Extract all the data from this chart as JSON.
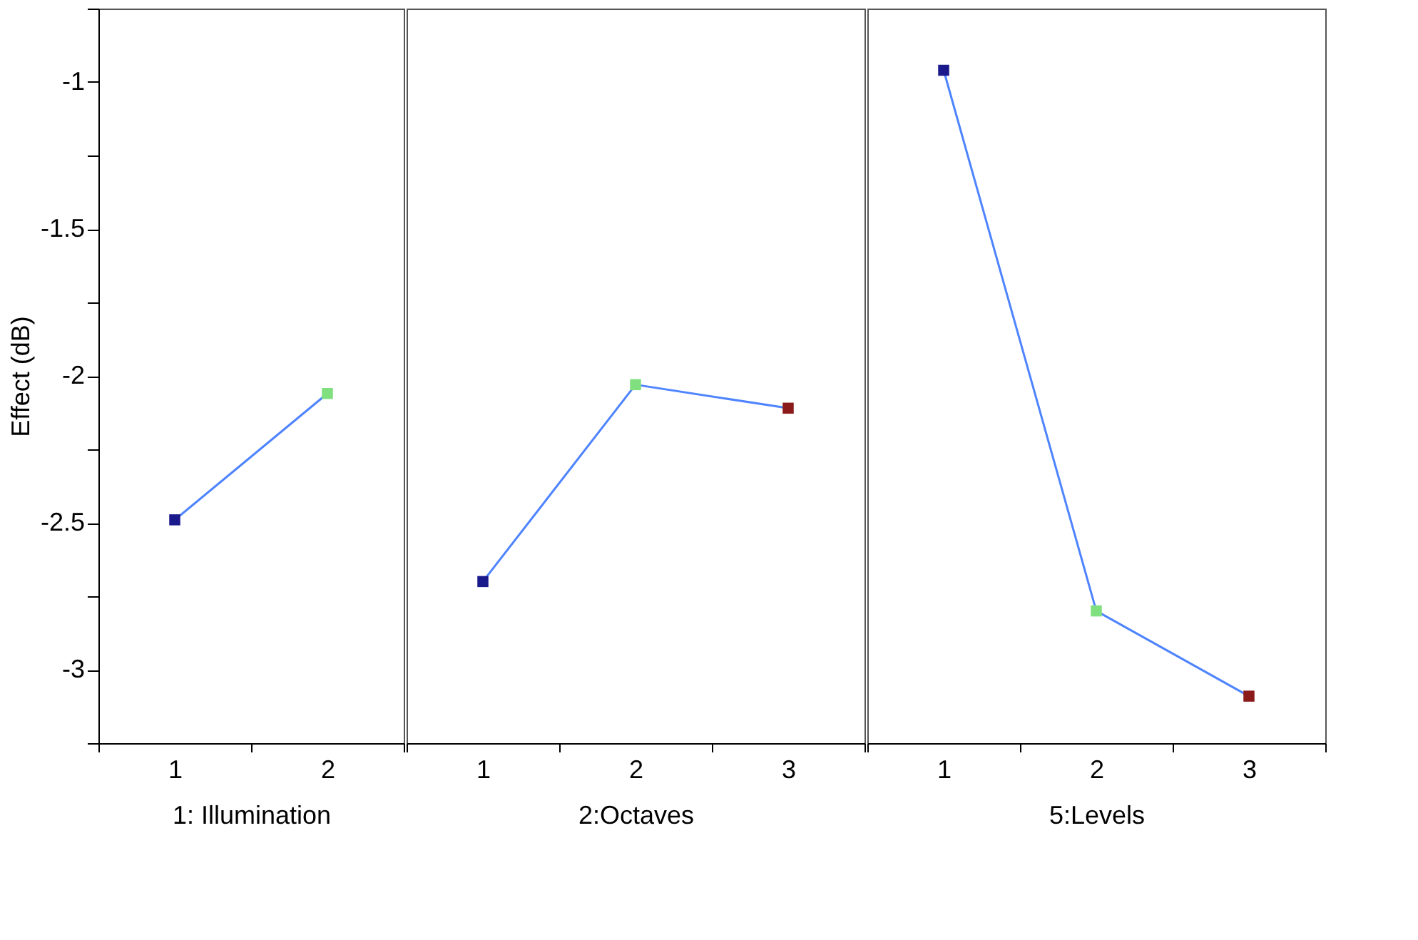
{
  "chart_data": [
    {
      "type": "line",
      "categories": [
        "1",
        "2"
      ],
      "xlabel": "1: Illumination",
      "ylabel": "Effect (dB)",
      "ylim": [
        -3.25,
        -0.75
      ],
      "yticks": [
        {
          "value": -0.75,
          "label": null
        },
        -1,
        {
          "value": -1.25,
          "label": null
        },
        -1.5,
        {
          "value": -1.75,
          "label": null
        },
        -2,
        {
          "value": -2.25,
          "label": null
        },
        -2.5,
        {
          "value": -2.75,
          "label": null
        },
        -3,
        {
          "value": -3.25,
          "label": null
        }
      ],
      "marker": "square",
      "line_style": "solid",
      "grid": false,
      "series": [
        {
          "color": "#4f84ff",
          "colors": [
            "#1a1a8c",
            "#80e080"
          ],
          "values": [
            -2.49,
            -2.06
          ]
        }
      ]
    },
    {
      "type": "line",
      "categories": [
        "1",
        "2",
        "3"
      ],
      "xlabel": "2:Octaves",
      "ylim": [
        -3.25,
        -0.75
      ],
      "tick_labels": "x",
      "marker": "square",
      "line_style": "solid",
      "grid": false,
      "series": [
        {
          "color": "#4f84ff",
          "colors": [
            "#1a1a8c",
            "#80e080",
            "#8b1a1a"
          ],
          "values": [
            -2.7,
            -2.03,
            -2.11
          ]
        }
      ]
    },
    {
      "type": "line",
      "categories": [
        "1",
        "2",
        "3"
      ],
      "xlabel": "5:Levels",
      "ylim": [
        -3.25,
        -0.75
      ],
      "tick_labels": "x",
      "marker": "square",
      "line_style": "solid",
      "grid": false,
      "series": [
        {
          "color": "#4f84ff",
          "colors": [
            "#1a1a8c",
            "#80e080",
            "#8b1a1a"
          ],
          "values": [
            -0.96,
            -2.8,
            -3.09
          ]
        }
      ]
    }
  ]
}
